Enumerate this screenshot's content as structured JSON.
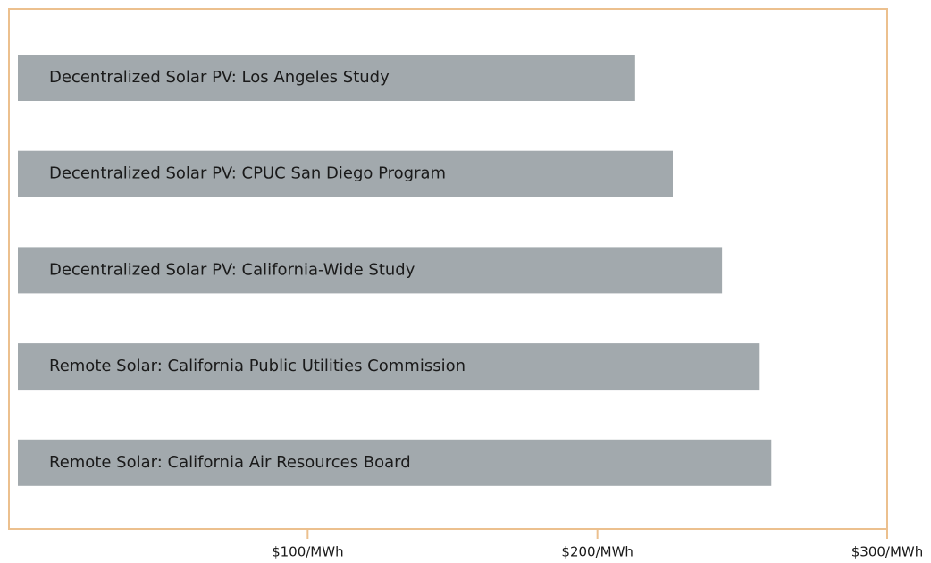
{
  "chart_data": {
    "type": "hbar",
    "categories": [
      "Decentralized Solar PV: Los Angeles Study",
      "Decentralized Solar PV: CPUC San Diego Program",
      "Decentralized Solar PV: California-Wide Study",
      "Remote Solar: California Public Utilities Commission",
      "Remote Solar: California Air Resources Board"
    ],
    "values": [
      213,
      226,
      243,
      256,
      260
    ],
    "color": "#a2a9ad",
    "xlim": [
      0,
      300
    ],
    "xticks": [
      {
        "value": 100,
        "label": "$100/MWh"
      },
      {
        "value": 200,
        "label": "$200/MWh"
      },
      {
        "value": 300,
        "label": "$300/MWh"
      }
    ]
  }
}
